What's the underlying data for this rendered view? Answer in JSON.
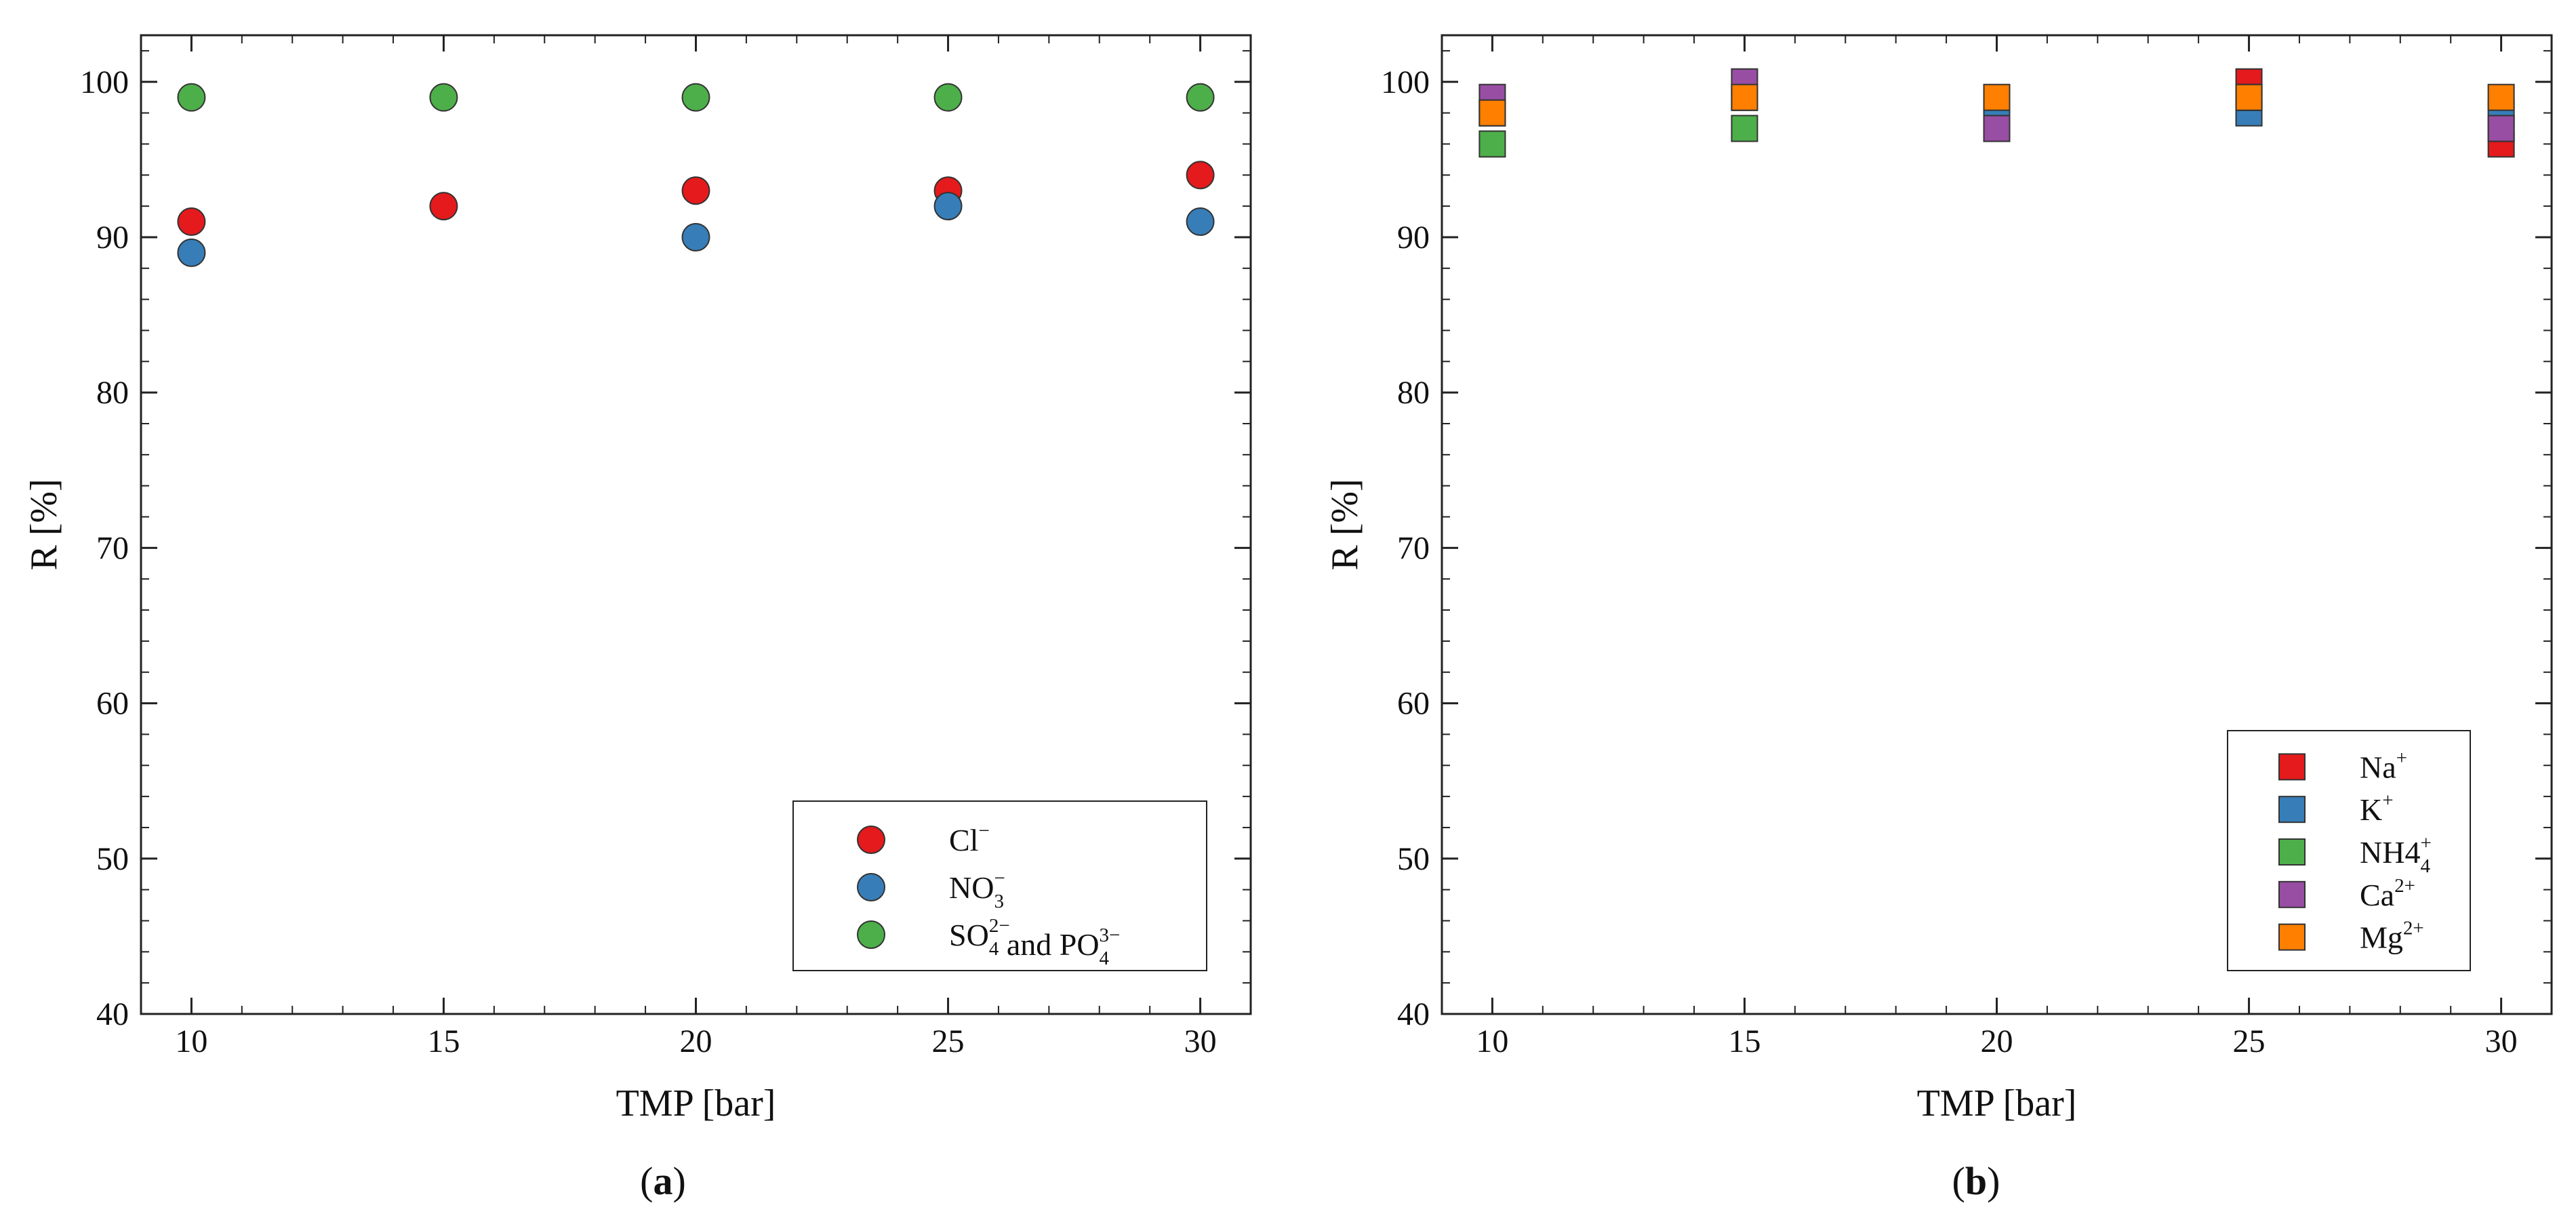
{
  "chart_data": [
    {
      "type": "scatter",
      "panel_label": "a",
      "title": "",
      "xlabel": "TMP [bar]",
      "ylabel": "R [%]",
      "xlim": [
        9,
        31
      ],
      "ylim": [
        40,
        103
      ],
      "xticks": [
        10,
        15,
        20,
        25,
        30
      ],
      "yticks": [
        40,
        50,
        60,
        70,
        80,
        90,
        100
      ],
      "grid": false,
      "legend_position": "bottom-right",
      "marker": "circle",
      "series": [
        {
          "name": "Cl",
          "sup": "−",
          "sub": "",
          "color": "#e41a1c",
          "x": [
            10,
            15,
            20,
            25,
            30
          ],
          "y": [
            91,
            92,
            93,
            93,
            94
          ]
        },
        {
          "name": "NO",
          "sup": "−",
          "sub": "3",
          "color": "#377eb8",
          "x": [
            10,
            20,
            25,
            30
          ],
          "y": [
            89,
            90,
            92,
            91
          ]
        },
        {
          "name": "SO",
          "sup": "2−",
          "sub": "4",
          "name_2": " and PO",
          "sup_2": "3−",
          "sub_2": "4",
          "color": "#4daf4a",
          "x": [
            10,
            15,
            20,
            25,
            30
          ],
          "y": [
            99,
            99,
            99,
            99,
            99
          ]
        }
      ]
    },
    {
      "type": "scatter",
      "panel_label": "b",
      "title": "",
      "xlabel": "TMP [bar]",
      "ylabel": "R [%]",
      "xlim": [
        9,
        31
      ],
      "ylim": [
        40,
        103
      ],
      "xticks": [
        10,
        15,
        20,
        25,
        30
      ],
      "yticks": [
        40,
        50,
        60,
        70,
        80,
        90,
        100
      ],
      "grid": false,
      "legend_position": "bottom-right",
      "marker": "square",
      "series": [
        {
          "name": "Na",
          "sup": "+",
          "sub": "",
          "color": "#e41a1c",
          "x": [
            10,
            15,
            20,
            25,
            30
          ],
          "y": [
            98,
            99,
            97,
            100,
            96
          ]
        },
        {
          "name": "K",
          "sup": "+",
          "sub": "",
          "color": "#377eb8",
          "x": [
            10,
            15,
            20,
            25,
            30
          ],
          "y": [
            98,
            99,
            98,
            98,
            98
          ]
        },
        {
          "name": "NH4",
          "sup": "+",
          "sub": "4",
          "color": "#4daf4a",
          "x": [
            10,
            15,
            20,
            25,
            30
          ],
          "y": [
            96,
            97,
            97,
            99,
            97
          ]
        },
        {
          "name": "Ca",
          "sup": "2+",
          "sub": "",
          "color": "#984ea3",
          "x": [
            10,
            15,
            20,
            25,
            30
          ],
          "y": [
            99,
            100,
            97,
            99,
            97
          ]
        },
        {
          "name": "Mg",
          "sup": "2+",
          "sub": "",
          "color": "#ff7f00",
          "x": [
            10,
            15,
            20,
            25,
            30
          ],
          "y": [
            98,
            99,
            99,
            99,
            99
          ]
        }
      ]
    }
  ]
}
